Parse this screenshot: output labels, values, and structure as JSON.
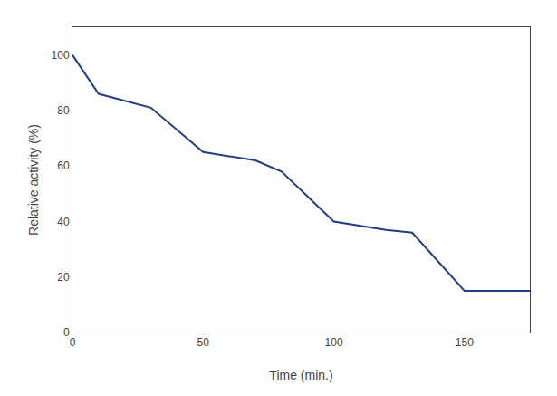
{
  "chart_data": {
    "type": "line",
    "x": [
      0,
      10,
      30,
      50,
      70,
      80,
      100,
      120,
      130,
      150,
      160,
      175
    ],
    "values": [
      100,
      86,
      81,
      65,
      62,
      58,
      40,
      37,
      36,
      15,
      15,
      15
    ],
    "color": "#1f3d8a",
    "xlabel": "Time (min.)",
    "ylabel": "Relative activity (%)",
    "xlim": [
      0,
      175
    ],
    "ylim": [
      0,
      110
    ],
    "xticks": [
      0,
      50,
      100,
      150
    ],
    "yticks": [
      0,
      20,
      40,
      60,
      80,
      100
    ],
    "grid": false
  }
}
